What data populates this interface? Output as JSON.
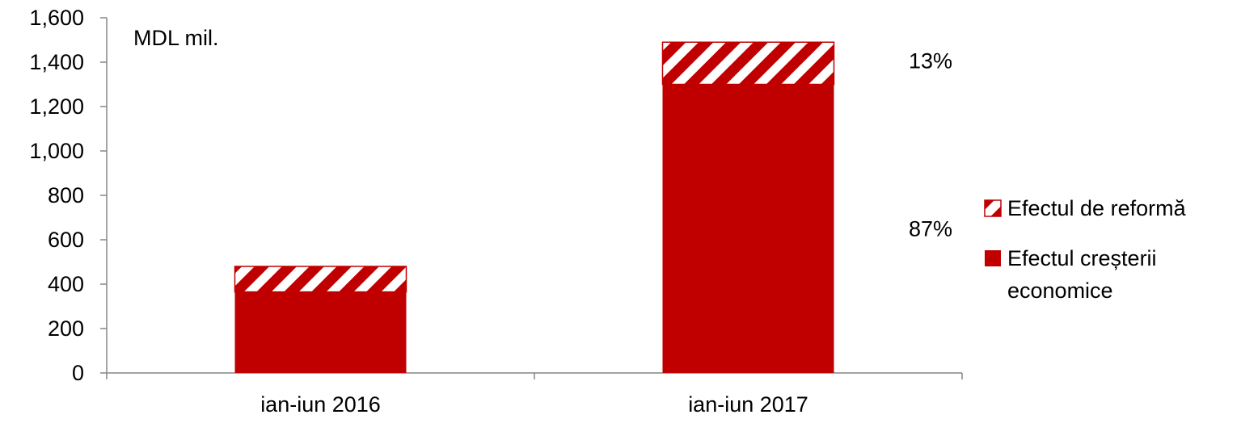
{
  "chart_data": {
    "type": "bar",
    "stacked": true,
    "categories": [
      "ian-iun 2016",
      "ian-iun 2017"
    ],
    "series": [
      {
        "name": "Efectul creșterii economice",
        "values": [
          365,
          1300
        ],
        "color": "#c00000",
        "fill": "solid"
      },
      {
        "name": "Efectul de reformă",
        "values": [
          115,
          190
        ],
        "color": "#c00000",
        "fill": "hatched"
      }
    ],
    "unit_label": "MDL mil.",
    "ylim": [
      0,
      1600
    ],
    "yticks": [
      0,
      200,
      400,
      600,
      800,
      1000,
      1200,
      1400,
      1600
    ],
    "ytick_labels": [
      "0",
      "200",
      "400",
      "600",
      "800",
      "1,000",
      "1,200",
      "1,400",
      "1,600"
    ],
    "annotations": [
      {
        "text": "13%",
        "category": "ian-iun 2017",
        "series": "Efectul de reformă"
      },
      {
        "text": "87%",
        "category": "ian-iun 2017",
        "series": "Efectul creșterii economice"
      }
    ],
    "legend": {
      "placement": "right",
      "entries": [
        {
          "series": "Efectul de reformă",
          "lines": [
            "Efectul de reformă"
          ]
        },
        {
          "series": "Efectul creșterii economice",
          "lines": [
            "Efectul creșterii",
            "economice"
          ]
        }
      ]
    },
    "grid": false
  }
}
